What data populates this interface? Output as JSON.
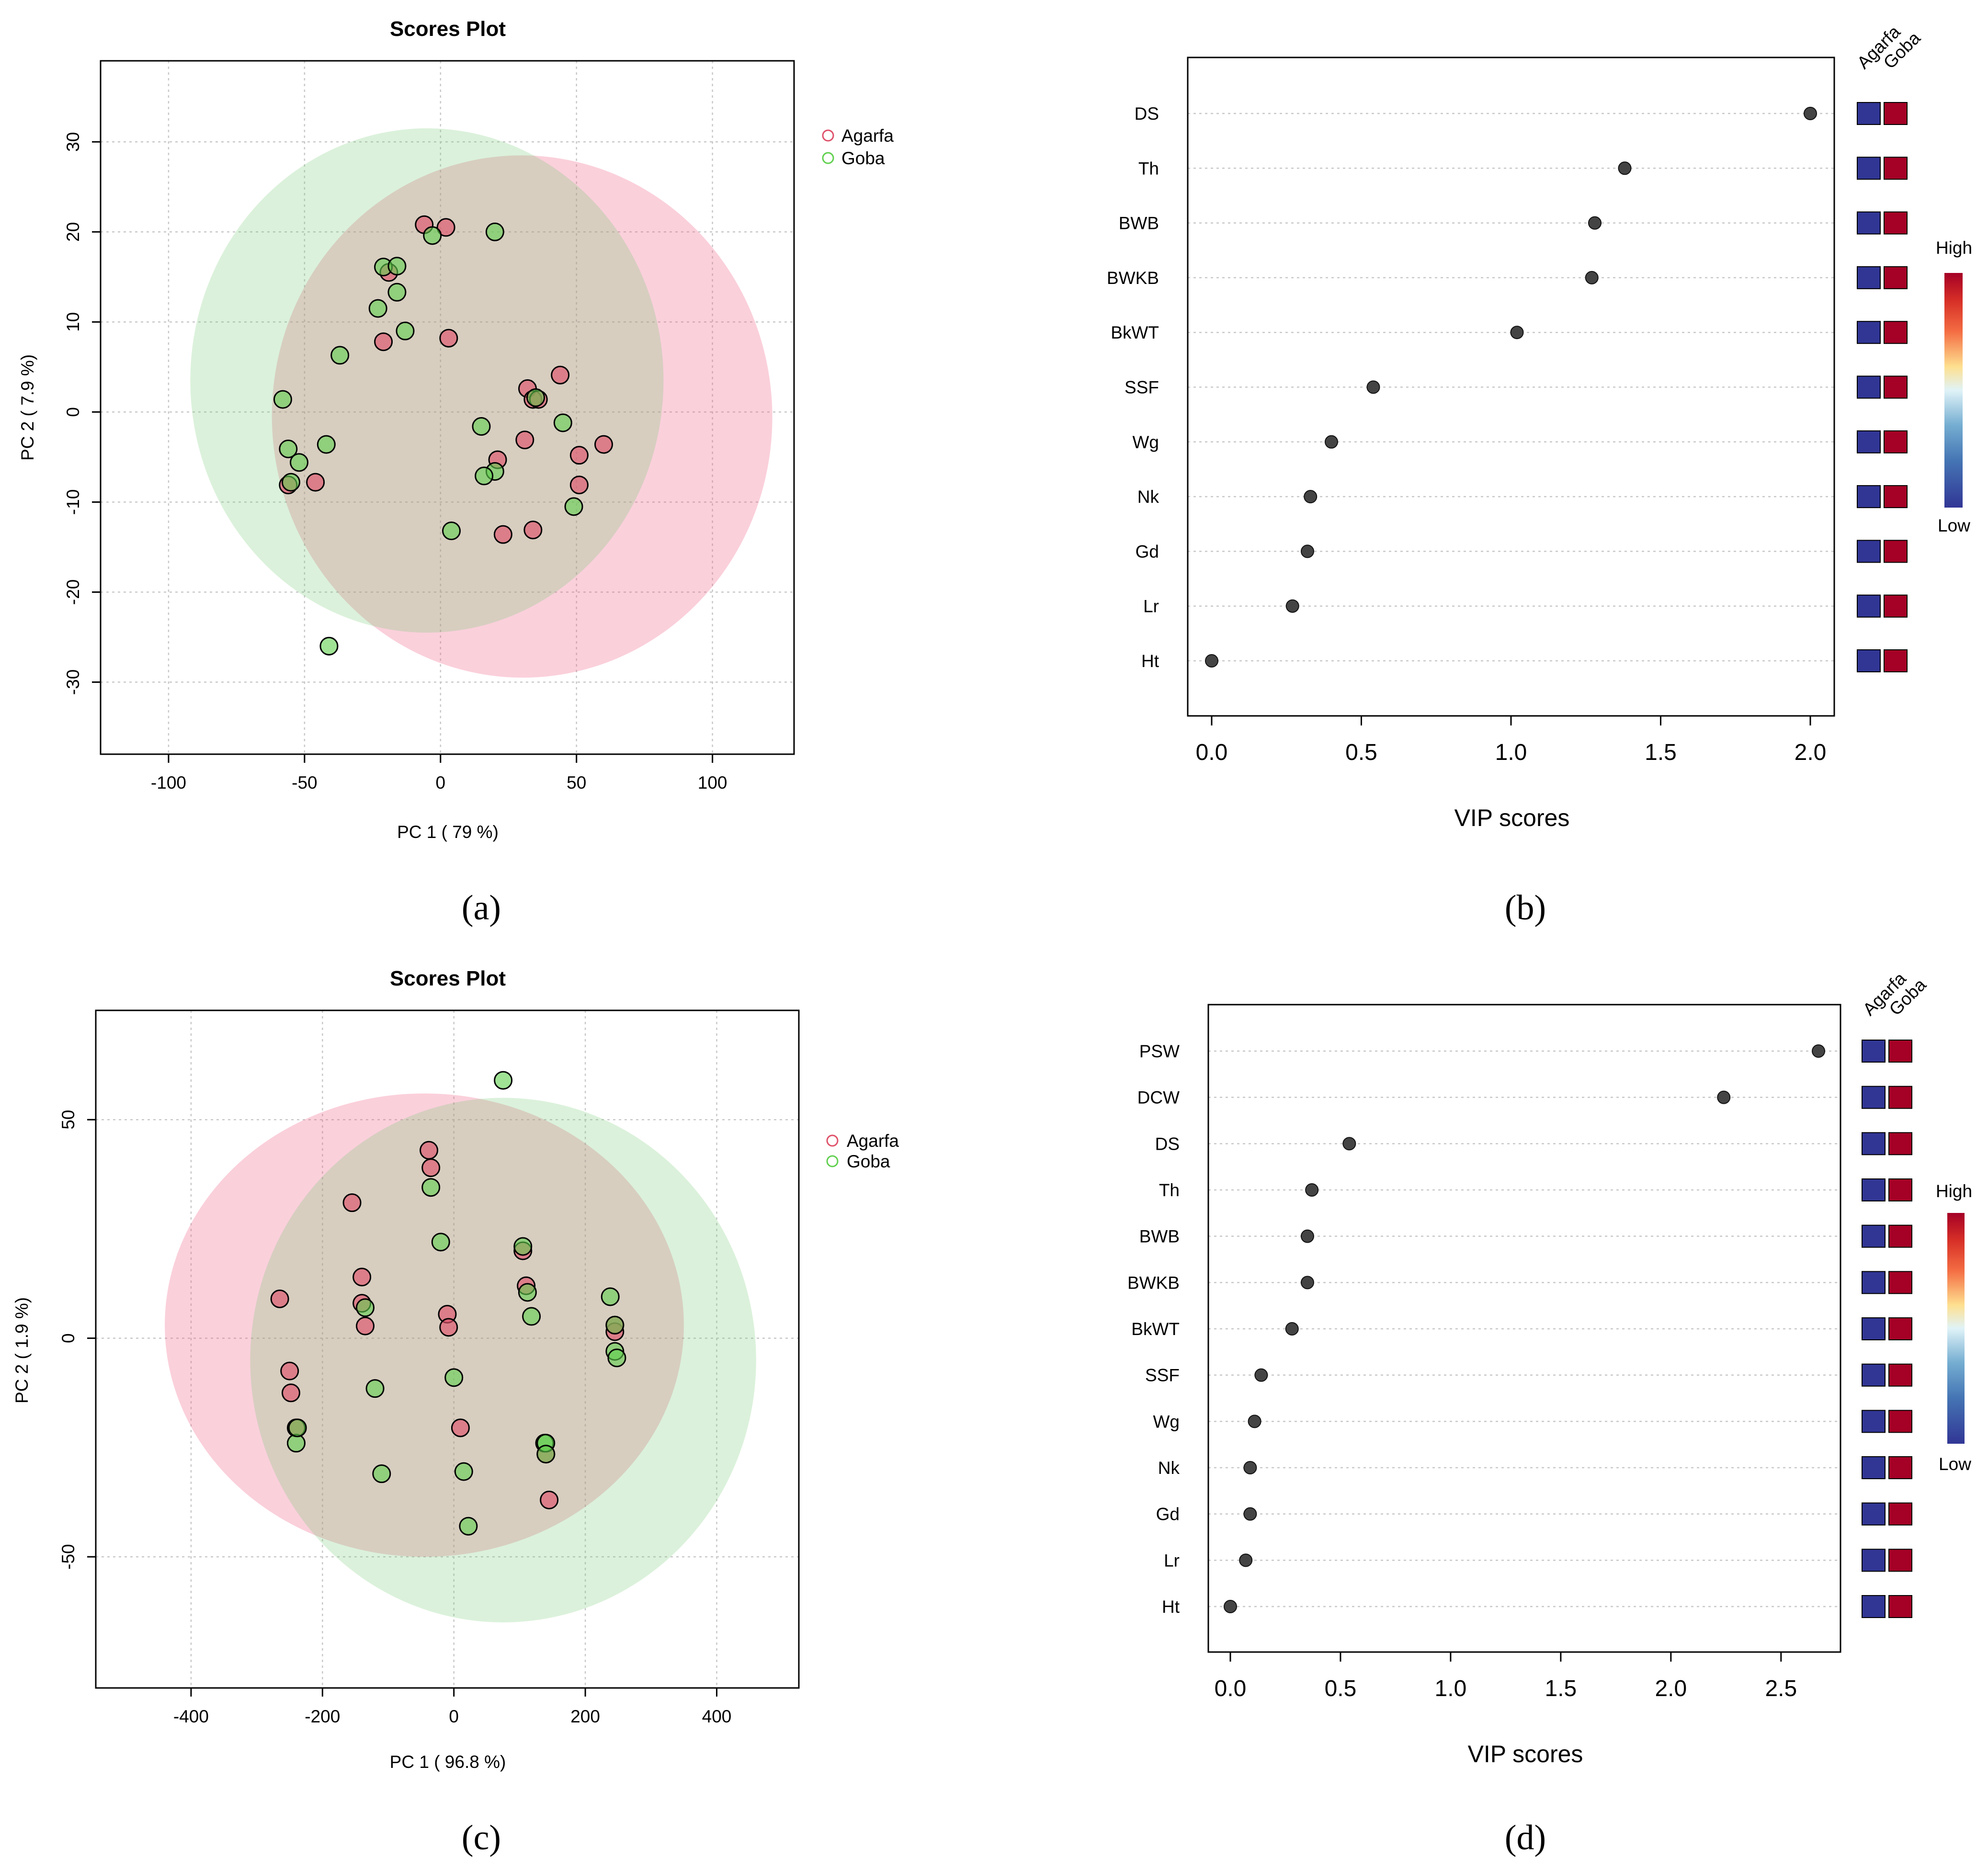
{
  "colors": {
    "agarfa": "#df536b",
    "goba": "#61d04f",
    "agarfa_fill": "rgba(223,83,107,0.65)",
    "goba_fill": "rgba(97,208,79,0.60)",
    "agarfa_ellipse": "rgba(240,100,135,0.30)",
    "goba_ellipse": "rgba(110,200,110,0.25)",
    "vip_low": "#313695",
    "vip_high": "#a50026",
    "vip_dot": "#444444"
  },
  "panels": [
    {
      "label": "(a)"
    },
    {
      "label": "(b)"
    },
    {
      "label": "(c)"
    },
    {
      "label": "(d)"
    }
  ],
  "chart_data": [
    {
      "type": "scatter",
      "title": "Scores Plot",
      "xlabel": "PC 1 ( 79 %)",
      "ylabel": "PC 2 ( 7.9 %)",
      "xlim": [
        -125,
        130
      ],
      "ylim": [
        -38,
        39
      ],
      "xticks": [
        -100,
        -50,
        0,
        50,
        100
      ],
      "yticks": [
        -30,
        -20,
        -10,
        0,
        10,
        20,
        30
      ],
      "grid": true,
      "legend_position": "right",
      "ellipses": [
        {
          "name": "Agarfa",
          "cx": 30,
          "cy": -0.5,
          "rx": 92,
          "ry": 29,
          "angle": -2
        },
        {
          "name": "Goba",
          "cx": -5,
          "cy": 3.5,
          "rx": 87,
          "ry": 28,
          "angle": 0
        }
      ],
      "series": [
        {
          "name": "Agarfa",
          "points": [
            [
              -6,
              20.8
            ],
            [
              2,
              20.5
            ],
            [
              -19,
              15.5
            ],
            [
              3,
              8.2
            ],
            [
              -21,
              7.8
            ],
            [
              32,
              2.6
            ],
            [
              44,
              4.1
            ],
            [
              34,
              1.4
            ],
            [
              36,
              1.4
            ],
            [
              31,
              -3.1
            ],
            [
              60,
              -3.6
            ],
            [
              51,
              -4.8
            ],
            [
              21,
              -5.3
            ],
            [
              51,
              -8.1
            ],
            [
              -46,
              -7.8
            ],
            [
              -56,
              -8.1
            ],
            [
              23,
              -13.6
            ],
            [
              34,
              -13.1
            ]
          ]
        },
        {
          "name": "Goba",
          "points": [
            [
              20,
              20.0
            ],
            [
              -3,
              19.6
            ],
            [
              -21,
              16.1
            ],
            [
              -16,
              16.2
            ],
            [
              -16,
              13.3
            ],
            [
              -23,
              11.5
            ],
            [
              -13,
              9.0
            ],
            [
              -37,
              6.3
            ],
            [
              -58,
              1.4
            ],
            [
              35,
              1.6
            ],
            [
              45,
              -1.2
            ],
            [
              15,
              -1.6
            ],
            [
              -42,
              -3.6
            ],
            [
              -56,
              -4.1
            ],
            [
              -52,
              -5.6
            ],
            [
              20,
              -6.6
            ],
            [
              16,
              -7.1
            ],
            [
              -55,
              -7.8
            ],
            [
              49,
              -10.5
            ],
            [
              4,
              -13.2
            ],
            [
              -41,
              -26.0
            ]
          ]
        }
      ]
    },
    {
      "type": "scatter",
      "xlabel": "VIP scores",
      "xlim": [
        -0.08,
        2.08
      ],
      "xticks": [
        0.0,
        0.5,
        1.0,
        1.5,
        2.0
      ],
      "xtick_labels": [
        "0.0",
        "0.5",
        "1.0",
        "1.5",
        "2.0"
      ],
      "grid": true,
      "categories": [
        "DS",
        "Th",
        "BWB",
        "BWKB",
        "BkWT",
        "SSF",
        "Wg",
        "Nk",
        "Gd",
        "Lr",
        "Ht"
      ],
      "values": [
        2.0,
        1.38,
        1.28,
        1.27,
        1.02,
        0.54,
        0.4,
        0.33,
        0.32,
        0.27,
        0.0
      ],
      "heatmap_columns": [
        "Agarfa",
        "Goba"
      ],
      "heatmap_levels": [
        0,
        1
      ],
      "colorbar": {
        "high": "High",
        "low": "Low"
      }
    },
    {
      "type": "scatter",
      "title": "Scores Plot",
      "xlabel": "PC 1 ( 96.8 %)",
      "ylabel": "PC 2 ( 1.9 %)",
      "xlim": [
        -545,
        525
      ],
      "ylim": [
        -80,
        75
      ],
      "xticks": [
        -400,
        -200,
        0,
        200,
        400
      ],
      "yticks": [
        -50,
        0,
        50
      ],
      "grid": true,
      "legend_position": "right",
      "ellipses": [
        {
          "name": "Agarfa",
          "cx": -45,
          "cy": 3,
          "rx": 395,
          "ry": 53,
          "angle": 0
        },
        {
          "name": "Goba",
          "cx": 75,
          "cy": -5,
          "rx": 385,
          "ry": 60,
          "angle": 0
        }
      ],
      "series": [
        {
          "name": "Agarfa",
          "points": [
            [
              -38,
              43
            ],
            [
              -35,
              39
            ],
            [
              -155,
              31
            ],
            [
              -140,
              14
            ],
            [
              -140,
              8
            ],
            [
              -265,
              9
            ],
            [
              105,
              20
            ],
            [
              110,
              12
            ],
            [
              -10,
              5.5
            ],
            [
              -8,
              2.5
            ],
            [
              -135,
              2.8
            ],
            [
              -250,
              -7.5
            ],
            [
              -248,
              -12.5
            ],
            [
              -240,
              -20.5
            ],
            [
              10,
              -20.5
            ],
            [
              140,
              -26.5
            ],
            [
              145,
              -37
            ],
            [
              245,
              1.5
            ],
            [
              245,
              3
            ]
          ]
        },
        {
          "name": "Goba",
          "points": [
            [
              75,
              59
            ],
            [
              -35,
              34.5
            ],
            [
              -20,
              22
            ],
            [
              105,
              21
            ],
            [
              112,
              10.5
            ],
            [
              118,
              5
            ],
            [
              -135,
              7
            ],
            [
              238,
              9.5
            ],
            [
              245,
              -3
            ],
            [
              248,
              -4.5
            ],
            [
              0,
              -9
            ],
            [
              -120,
              -11.5
            ],
            [
              -240,
              -24
            ],
            [
              138,
              -24
            ],
            [
              140,
              -24
            ],
            [
              -110,
              -31
            ],
            [
              15,
              -30.5
            ],
            [
              22,
              -43
            ],
            [
              -238,
              -20.5
            ],
            [
              140,
              -26.5
            ],
            [
              245,
              3
            ]
          ]
        }
      ]
    },
    {
      "type": "scatter",
      "xlabel": "VIP scores",
      "xlim": [
        -0.1,
        2.77
      ],
      "xticks": [
        0.0,
        0.5,
        1.0,
        1.5,
        2.0,
        2.5
      ],
      "xtick_labels": [
        "0.0",
        "0.5",
        "1.0",
        "1.5",
        "2.0",
        "2.5"
      ],
      "grid": true,
      "categories": [
        "PSW",
        "DCW",
        "DS",
        "Th",
        "BWB",
        "BWKB",
        "BkWT",
        "SSF",
        "Wg",
        "Nk",
        "Gd",
        "Lr",
        "Ht"
      ],
      "values": [
        2.67,
        2.24,
        0.54,
        0.37,
        0.35,
        0.35,
        0.28,
        0.14,
        0.11,
        0.09,
        0.09,
        0.07,
        0.0
      ],
      "heatmap_columns": [
        "Agarfa",
        "Goba"
      ],
      "heatmap_levels": [
        0,
        1
      ],
      "colorbar": {
        "high": "High",
        "low": "Low"
      }
    }
  ]
}
